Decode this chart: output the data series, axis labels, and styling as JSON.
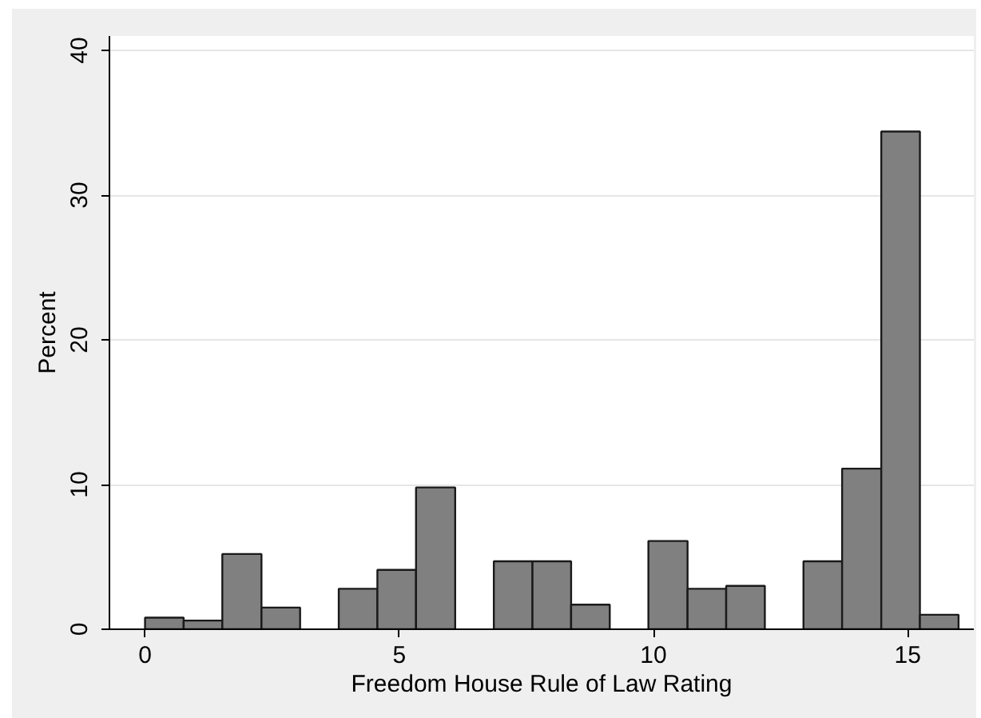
{
  "chart_data": {
    "type": "histogram",
    "xlabel": "Freedom House Rule of Law Rating",
    "ylabel": "Percent",
    "bins": [
      0,
      0.76,
      1.52,
      2.29,
      3.05,
      3.81,
      4.57,
      5.33,
      6.1,
      6.86,
      7.62,
      8.38,
      9.14,
      9.9,
      10.67,
      11.43,
      12.19,
      12.95,
      13.71,
      14.48,
      15.24,
      16
    ],
    "values": [
      0.8,
      0.6,
      5.2,
      1.5,
      0,
      2.8,
      4.1,
      9.8,
      0,
      4.7,
      4.7,
      1.7,
      0,
      6.1,
      2.8,
      3.0,
      0,
      4.7,
      11.1,
      34.4,
      1.0
    ],
    "color": "#808080",
    "xlim": [
      -0.7,
      16.3
    ],
    "ylim": [
      0,
      41
    ],
    "xticks": [
      0,
      5,
      10,
      15
    ],
    "yticks": [
      0,
      10,
      20,
      30,
      40
    ],
    "grid": "y"
  }
}
